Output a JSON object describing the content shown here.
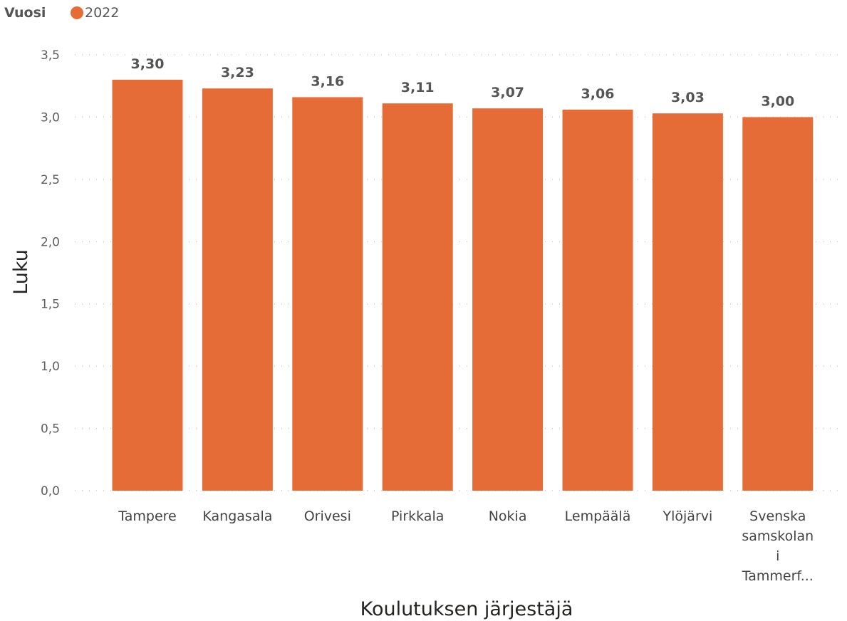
{
  "legend": {
    "title": "Vuosi",
    "items": [
      {
        "label": "2022",
        "color": "#E66C37"
      }
    ]
  },
  "chart_data": {
    "type": "bar",
    "xlabel": "Koulutuksen järjestäjä",
    "ylabel": "Luku",
    "ylim": [
      0,
      3.5
    ],
    "yticks": [
      "0,0",
      "0,5",
      "1,0",
      "1,5",
      "2,0",
      "2,5",
      "3,0",
      "3,5"
    ],
    "grid": true,
    "legend_position": "top-left",
    "bar_color": "#E66C37",
    "categories": [
      "Tampere",
      "Kangasala",
      "Orivesi",
      "Pirkkala",
      "Nokia",
      "Lempäälä",
      "Ylöjärvi",
      "Svenska samskolan i Tammerf..."
    ],
    "series": [
      {
        "name": "2022",
        "values": [
          3.3,
          3.23,
          3.16,
          3.11,
          3.07,
          3.06,
          3.03,
          3.0
        ],
        "labels": [
          "3,30",
          "3,23",
          "3,16",
          "3,11",
          "3,07",
          "3,06",
          "3,03",
          "3,00"
        ]
      }
    ]
  }
}
